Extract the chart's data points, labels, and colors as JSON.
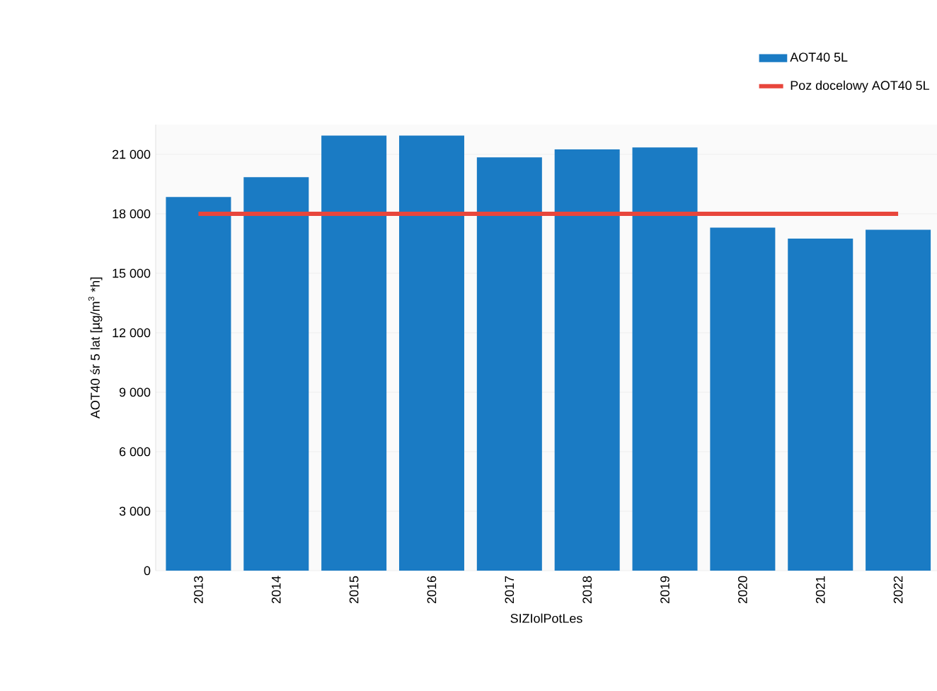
{
  "chart_data": {
    "type": "bar",
    "xlabel": "SIZIolPotLes",
    "ylabel": "AOT40 śr 5 lat [µg/m$^{3}$ *h]",
    "categories": [
      "2013",
      "2014",
      "2015",
      "2016",
      "2017",
      "2018",
      "2019",
      "2020",
      "2021",
      "2022"
    ],
    "series": [
      {
        "name": "AOT40 5L",
        "color": "#1a7bc4",
        "values": [
          18850,
          19850,
          21950,
          21950,
          20850,
          21250,
          21350,
          17300,
          16750,
          17200
        ]
      },
      {
        "name": "Poz docelowy AOT40 5L",
        "type": "line",
        "color": "#e8463c",
        "values": [
          18000,
          18000,
          18000,
          18000,
          18000,
          18000,
          18000,
          18000,
          18000,
          18000
        ]
      }
    ],
    "ylim": [
      0,
      22500
    ],
    "yticks": [
      0,
      {
        "value": 3000,
        "label": "3 000"
      },
      {
        "value": 6000,
        "label": "6 000"
      },
      {
        "value": 9000,
        "label": "9 000"
      },
      {
        "value": 12000,
        "label": "12 000"
      },
      {
        "value": 15000,
        "label": "15 000"
      },
      {
        "value": 18000,
        "label": "18 000"
      },
      {
        "value": 21000,
        "label": "21 000"
      }
    ],
    "grid": "y",
    "legend": "top right"
  }
}
